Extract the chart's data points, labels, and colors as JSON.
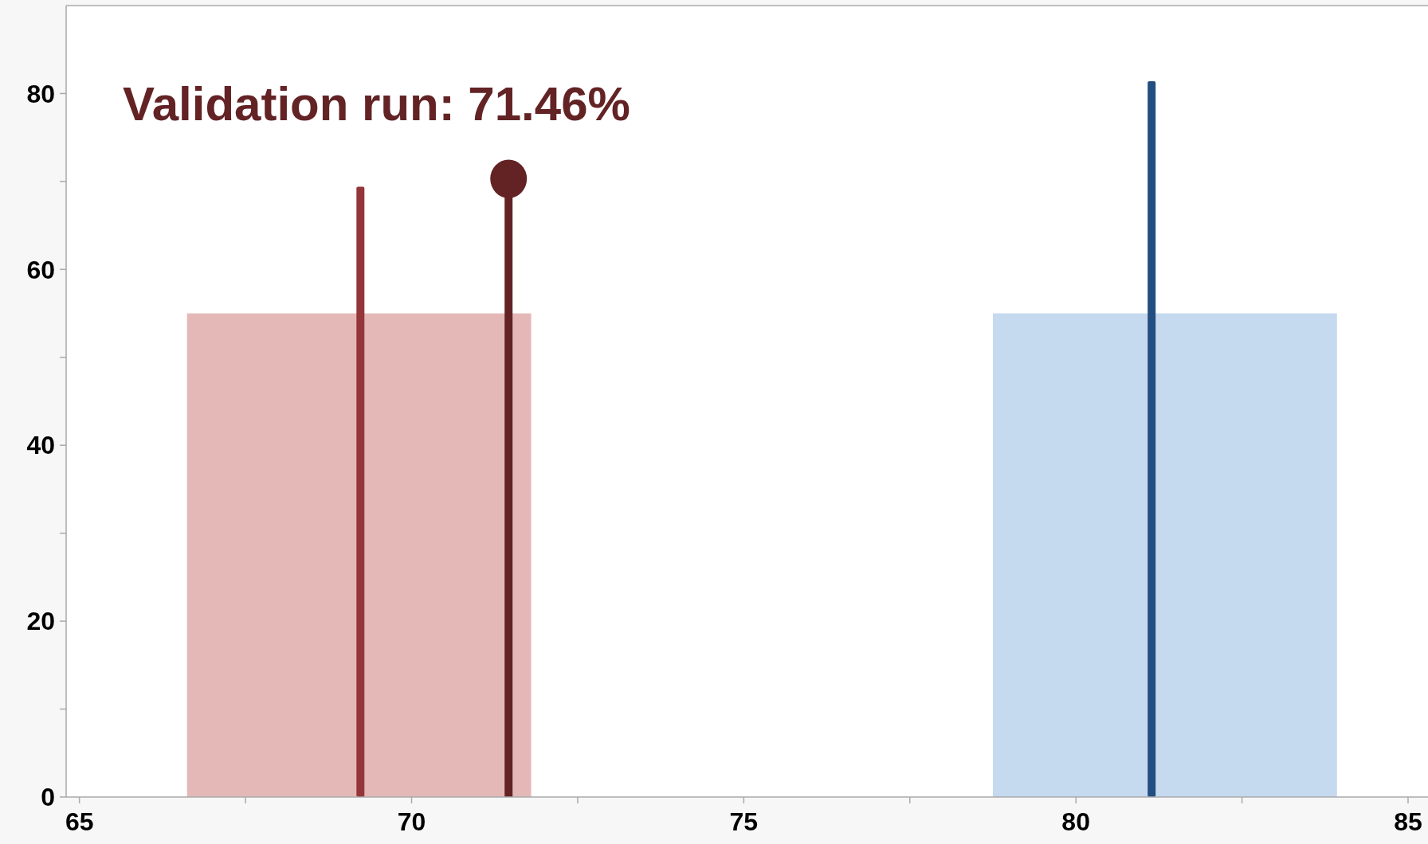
{
  "chart_data": {
    "type": "bar",
    "xlim": [
      64.8,
      85.3
    ],
    "ylim": [
      0,
      90
    ],
    "xticks": [
      65,
      {
        "value": 67.5,
        "label": null
      },
      70,
      {
        "value": 72.5,
        "label": null
      },
      75,
      {
        "value": 77.5,
        "label": null
      },
      80,
      {
        "value": 82.5,
        "label": null
      },
      85
    ],
    "yticks": [
      0,
      {
        "value": 10,
        "label": null
      },
      20,
      {
        "value": 30,
        "label": null
      },
      40,
      {
        "value": 50,
        "label": null
      },
      60,
      {
        "value": 70,
        "label": null
      },
      80
    ],
    "grid": false,
    "annotations": [
      "Validation run: 71.46%"
    ],
    "series": [
      {
        "type": "histogram",
        "bins": [
          66.62,
          71.8,
          78.75,
          83.93
        ],
        "values": [
          55,
          null,
          55
        ],
        "colors": [
          "#e5b8b8",
          null,
          "#c5d9ef"
        ]
      },
      {
        "x": [
          69.23,
          81.14
        ],
        "values": [
          69.4,
          81.4
        ],
        "colors": [
          "#94353a",
          "#234e82"
        ]
      },
      {
        "type": "lollipop",
        "x": [
          71.46
        ],
        "values": [
          70.3
        ],
        "color": "#632325",
        "marker": "circle"
      }
    ]
  }
}
